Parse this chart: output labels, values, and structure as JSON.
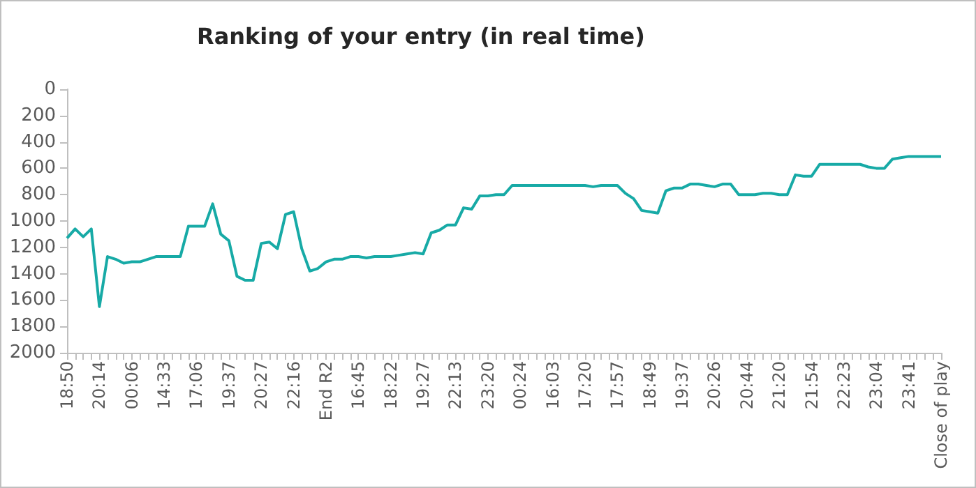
{
  "chart_data": {
    "type": "line",
    "title": "Ranking of your entry (in real time)",
    "categories": [
      "18:50",
      null,
      null,
      null,
      "20:14",
      null,
      null,
      null,
      "00:06",
      null,
      null,
      null,
      "14:33",
      null,
      null,
      null,
      "17:06",
      null,
      null,
      null,
      "19:37",
      null,
      null,
      null,
      "20:27",
      null,
      null,
      null,
      "22:16",
      null,
      null,
      null,
      "End R2",
      null,
      null,
      null,
      "16:45",
      null,
      null,
      null,
      "18:22",
      null,
      null,
      null,
      "19:27",
      null,
      null,
      null,
      "22:13",
      null,
      null,
      null,
      "23:20",
      null,
      null,
      null,
      "00:24",
      null,
      null,
      null,
      "16:03",
      null,
      null,
      null,
      "17:20",
      null,
      null,
      null,
      "17:57",
      null,
      null,
      null,
      "18:49",
      null,
      null,
      null,
      "19:37",
      null,
      null,
      null,
      "20:26",
      null,
      null,
      null,
      "20:44",
      null,
      null,
      null,
      "21:20",
      null,
      null,
      null,
      "21:54",
      null,
      null,
      null,
      "22:23",
      null,
      null,
      null,
      "23:04",
      null,
      null,
      null,
      "23:41",
      null,
      null,
      null,
      "Close of play"
    ],
    "series": [
      {
        "color": "#17aaa6",
        "values": [
          1130,
          1060,
          1120,
          1060,
          1650,
          1270,
          1290,
          1320,
          1310,
          1310,
          1290,
          1270,
          1270,
          1270,
          1270,
          1040,
          1040,
          1040,
          870,
          1100,
          1150,
          1420,
          1450,
          1450,
          1170,
          1160,
          1210,
          950,
          930,
          1210,
          1380,
          1360,
          1310,
          1290,
          1290,
          1270,
          1270,
          1280,
          1270,
          1270,
          1270,
          1260,
          1250,
          1240,
          1250,
          1090,
          1070,
          1030,
          1030,
          900,
          910,
          810,
          810,
          800,
          800,
          730,
          730,
          730,
          730,
          730,
          730,
          730,
          730,
          730,
          730,
          740,
          730,
          730,
          730,
          790,
          830,
          920,
          930,
          940,
          770,
          750,
          750,
          720,
          720,
          730,
          740,
          720,
          720,
          800,
          800,
          800,
          790,
          790,
          800,
          800,
          650,
          660,
          660,
          570,
          570,
          570,
          570,
          570,
          570,
          590,
          600,
          600,
          530,
          520,
          510,
          510,
          510,
          510,
          510
        ]
      }
    ],
    "ylim": [
      2000,
      0
    ],
    "yticks": [
      0,
      200,
      400,
      600,
      800,
      1000,
      1200,
      1400,
      1600,
      1800,
      2000
    ],
    "marker": "none",
    "line_style": "solid"
  }
}
